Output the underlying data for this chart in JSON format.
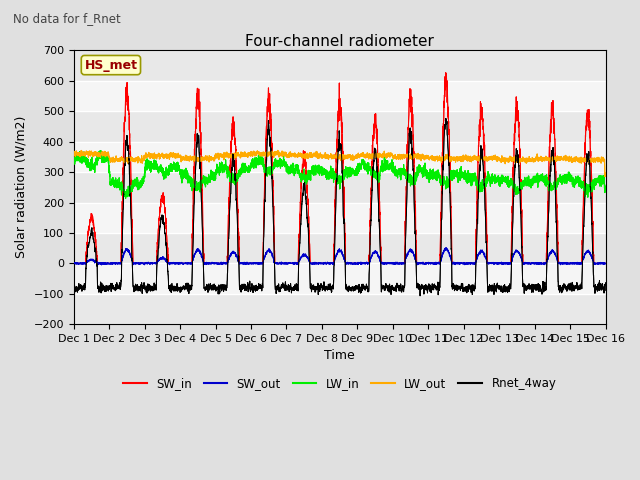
{
  "title": "Four-channel radiometer",
  "subtitle": "No data for f_Rnet",
  "xlabel": "Time",
  "ylabel": "Solar radiation (W/m2)",
  "ylim": [
    -200,
    700
  ],
  "yticks": [
    -200,
    -100,
    0,
    100,
    200,
    300,
    400,
    500,
    600,
    700
  ],
  "xtick_labels": [
    "Dec 1",
    "Dec 2",
    "Dec 3",
    "Dec 4",
    "Dec 5",
    "Dec 6",
    "Dec 7",
    "Dec 8",
    "Dec 9",
    "Dec 10",
    "Dec 11",
    "Dec 12",
    "Dec 13",
    "Dec 14",
    "Dec 15",
    "Dec 16"
  ],
  "station_label": "HS_met",
  "legend_entries": [
    "SW_in",
    "SW_out",
    "LW_in",
    "LW_out",
    "Rnet_4way"
  ],
  "legend_colors": [
    "#ff0000",
    "#0000cc",
    "#00ee00",
    "#ffaa00",
    "#000000"
  ],
  "bg_color": "#e0e0e0",
  "plot_bg_color": "#f5f5f5",
  "num_days": 15,
  "figwidth": 6.4,
  "figheight": 4.8,
  "dpi": 100
}
